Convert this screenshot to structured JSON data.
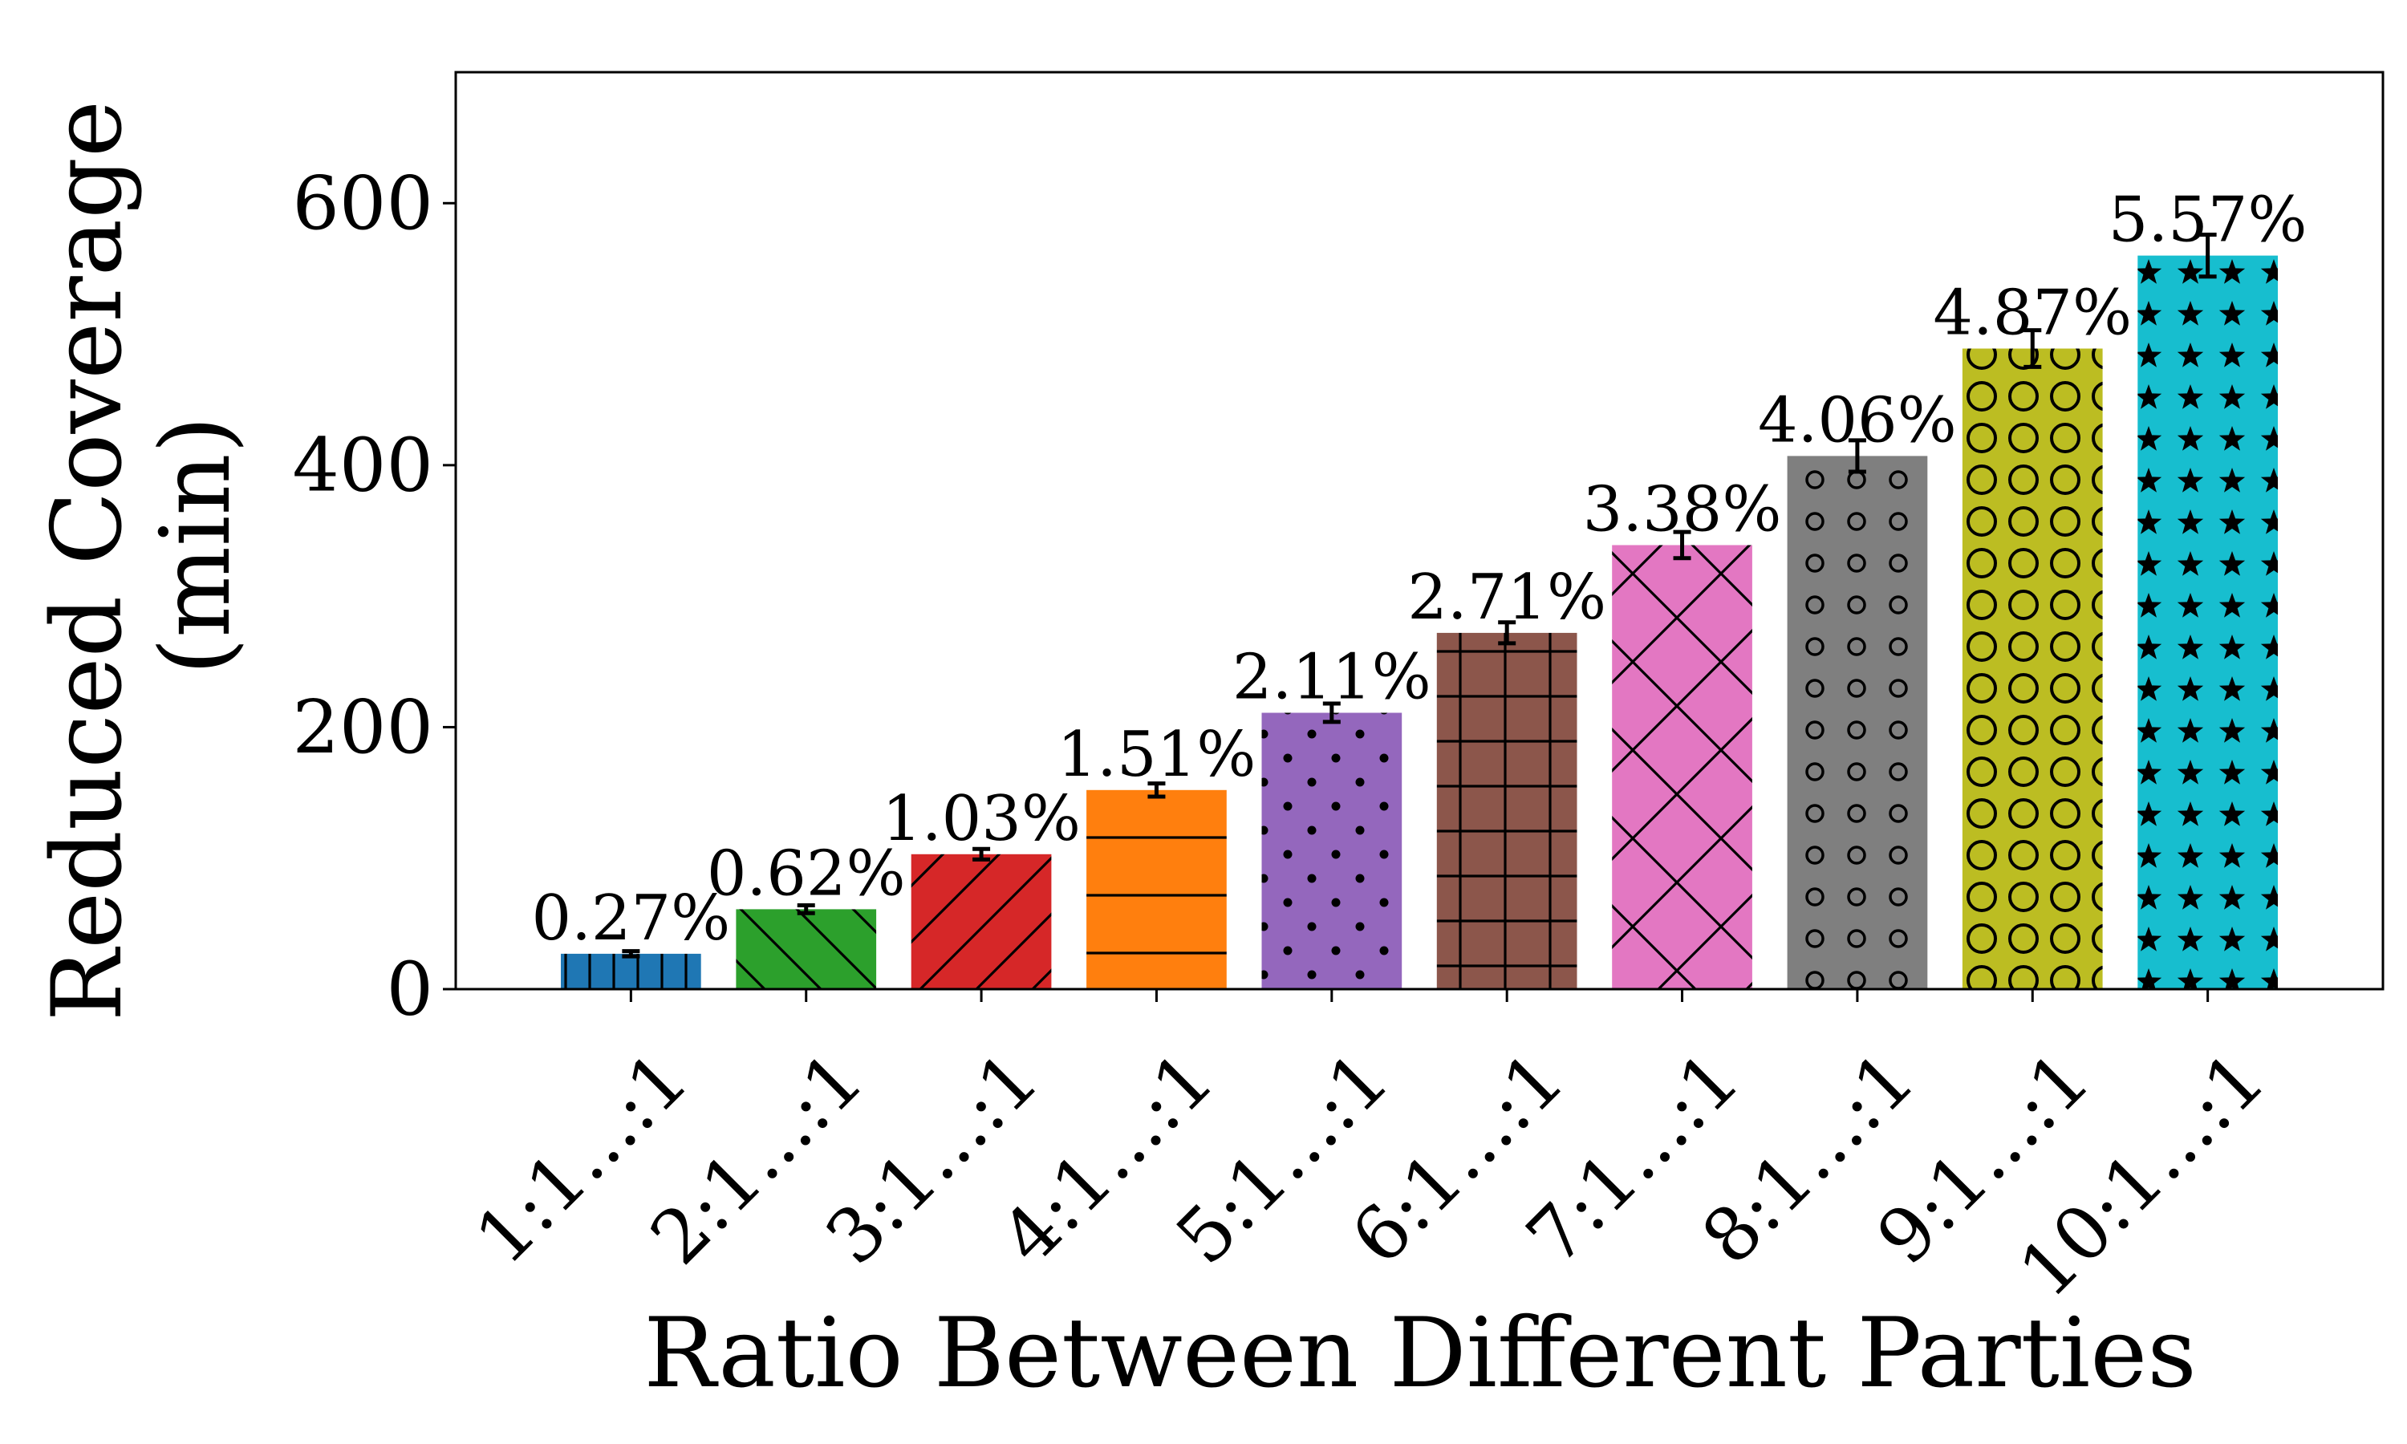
{
  "chart_data": {
    "type": "bar",
    "title": "",
    "xlabel": "Ratio Between Different Parties",
    "ylabel_lines": [
      "Reduced Coverage",
      "(min)"
    ],
    "ylim": [
      0,
      700
    ],
    "yticks": [
      0,
      200,
      400,
      600
    ],
    "yticks_labels": [
      "0",
      "200",
      "400",
      "600"
    ],
    "grid": false,
    "categories": [
      "1:1...:1",
      "2:1...:1",
      "3:1...:1",
      "4:1...:1",
      "5:1...:1",
      "6:1...:1",
      "7:1...:1",
      "8:1...:1",
      "9:1...:1",
      "10:1...:1"
    ],
    "values": [
      27,
      61,
      103,
      152,
      211,
      272,
      339,
      407,
      489,
      560
    ],
    "errors": [
      2,
      3,
      4,
      5,
      7,
      8,
      10,
      12,
      14,
      16
    ],
    "data_labels": [
      "0.27%",
      "0.62%",
      "1.03%",
      "1.51%",
      "2.11%",
      "2.71%",
      "3.38%",
      "4.06%",
      "4.87%",
      "5.57%"
    ],
    "colors": [
      "#1f77b4",
      "#2ca02c",
      "#d62728",
      "#ff7f0e",
      "#9467bd",
      "#8c564b",
      "#e377c2",
      "#7f7f7f",
      "#bcbd22",
      "#17becf"
    ],
    "hatches": [
      "vertical",
      "backslash",
      "slash",
      "horizontal",
      "dots",
      "grid",
      "crosshatch",
      "small-circles",
      "big-circles",
      "stars"
    ]
  }
}
